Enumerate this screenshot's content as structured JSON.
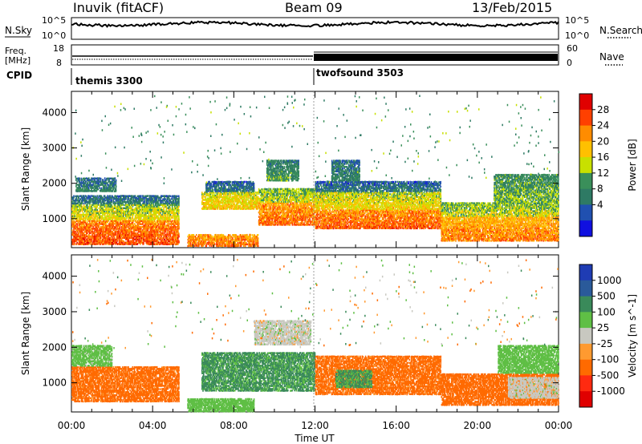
{
  "header": {
    "station": "Inuvik (fitACF)",
    "beam": "Beam 09",
    "date": "13/Feb/2015"
  },
  "top_panels": {
    "sky_label": "N.Sky",
    "search_label": "N.Search",
    "sky_ticks": [
      "10^5",
      "10^0"
    ],
    "freq_label_line1": "Freq.",
    "freq_label_line2": "[MHz]",
    "freq_ticks": [
      "18",
      "8"
    ],
    "nave_label": "Nave",
    "nave_ticks": [
      "60",
      "0"
    ],
    "cpid_label": "CPID",
    "cpid_segments": [
      {
        "name": "themis 3300",
        "start_hour": 0,
        "end_hour": 12
      },
      {
        "name": "twofsound 3503",
        "start_hour": 12,
        "end_hour": 24
      }
    ]
  },
  "time_axis": {
    "label": "Time UT",
    "ticks": [
      "00:00",
      "04:00",
      "08:00",
      "12:00",
      "16:00",
      "20:00",
      "00:00"
    ]
  },
  "chart_data": [
    {
      "type": "heatmap",
      "panel": "power",
      "ylabel": "Slant Range [km]",
      "yticks": [
        1000,
        2000,
        3000,
        4000
      ],
      "ylim": [
        180,
        4600
      ],
      "xlim_hours": [
        0,
        24
      ],
      "colorbar_label": "Power [dB]",
      "colorbar_ticks": [
        "28",
        "24",
        "20",
        "16",
        "12",
        "8",
        "4"
      ],
      "colorbar_colors": [
        "#e00000",
        "#ff4000",
        "#ff8c00",
        "#ffc000",
        "#c8e000",
        "#3a8f5a",
        "#2e7a64",
        "#2050b0",
        "#1010e0"
      ],
      "regions": [
        {
          "t0": 0.0,
          "t1": 5.3,
          "r0": 300,
          "r1": 1000,
          "level": 28
        },
        {
          "t0": 0.0,
          "t1": 5.3,
          "r0": 1000,
          "r1": 1450,
          "level": 18
        },
        {
          "t0": 0.0,
          "t1": 5.3,
          "r0": 1450,
          "r1": 1700,
          "level": 9
        },
        {
          "t0": 0.2,
          "t1": 2.2,
          "r0": 1800,
          "r1": 2200,
          "level": 10
        },
        {
          "t0": 5.7,
          "t1": 9.2,
          "r0": 250,
          "r1": 600,
          "level": 26
        },
        {
          "t0": 6.4,
          "t1": 9.2,
          "r0": 1300,
          "r1": 1800,
          "level": 20
        },
        {
          "t0": 6.6,
          "t1": 9.0,
          "r0": 1800,
          "r1": 2100,
          "level": 8
        },
        {
          "t0": 9.2,
          "t1": 12.0,
          "r0": 850,
          "r1": 1500,
          "level": 26
        },
        {
          "t0": 9.2,
          "t1": 12.0,
          "r0": 1500,
          "r1": 1900,
          "level": 17
        },
        {
          "t0": 9.6,
          "t1": 11.2,
          "r0": 2100,
          "r1": 2700,
          "level": 12
        },
        {
          "t0": 12.0,
          "t1": 18.2,
          "r0": 750,
          "r1": 1300,
          "level": 27
        },
        {
          "t0": 12.0,
          "t1": 18.2,
          "r0": 1300,
          "r1": 1800,
          "level": 19
        },
        {
          "t0": 12.0,
          "t1": 18.2,
          "r0": 1800,
          "r1": 2100,
          "level": 8
        },
        {
          "t0": 12.8,
          "t1": 14.2,
          "r0": 2100,
          "r1": 2700,
          "level": 10
        },
        {
          "t0": 18.2,
          "t1": 24.0,
          "r0": 400,
          "r1": 1100,
          "level": 25
        },
        {
          "t0": 18.2,
          "t1": 24.0,
          "r0": 1100,
          "r1": 1500,
          "level": 17
        },
        {
          "t0": 20.8,
          "t1": 24.0,
          "r0": 1500,
          "r1": 2300,
          "level": 14
        }
      ]
    },
    {
      "type": "heatmap",
      "panel": "velocity",
      "ylabel": "Slant Range [km]",
      "yticks": [
        1000,
        2000,
        3000,
        4000
      ],
      "ylim": [
        180,
        4600
      ],
      "xlim_hours": [
        0,
        24
      ],
      "colorbar_label": "Velocity [m s^-1]",
      "colorbar_ticks": [
        "1000",
        "500",
        "100",
        "25",
        "-25",
        "-100",
        "-500",
        "-1000"
      ],
      "colorbar_colors": [
        "#1f3cb4",
        "#2a5a9a",
        "#3a8a5a",
        "#5fbf45",
        "#c8c8c0",
        "#ff9a30",
        "#ff6a00",
        "#ff2a10",
        "#e00000"
      ],
      "regions": [
        {
          "t0": 0.0,
          "t1": 5.3,
          "r0": 500,
          "r1": 1500,
          "level": -150
        },
        {
          "t0": 0.0,
          "t1": 2.0,
          "r0": 1500,
          "r1": 2100,
          "level": 50
        },
        {
          "t0": 5.7,
          "t1": 9.0,
          "r0": 220,
          "r1": 600,
          "level": 60
        },
        {
          "t0": 6.4,
          "t1": 12.0,
          "r0": 800,
          "r1": 1900,
          "level": 120
        },
        {
          "t0": 9.0,
          "t1": 11.8,
          "r0": 2100,
          "r1": 2800,
          "level": 0
        },
        {
          "t0": 12.0,
          "t1": 18.2,
          "r0": 700,
          "r1": 1800,
          "level": -150
        },
        {
          "t0": 13.0,
          "t1": 14.8,
          "r0": 900,
          "r1": 1400,
          "level": 110
        },
        {
          "t0": 18.2,
          "t1": 24.0,
          "r0": 400,
          "r1": 1300,
          "level": -300
        },
        {
          "t0": 21.5,
          "t1": 24.0,
          "r0": 600,
          "r1": 1200,
          "level": 0
        },
        {
          "t0": 21.0,
          "t1": 24.0,
          "r0": 1300,
          "r1": 2100,
          "level": 60
        }
      ]
    }
  ]
}
